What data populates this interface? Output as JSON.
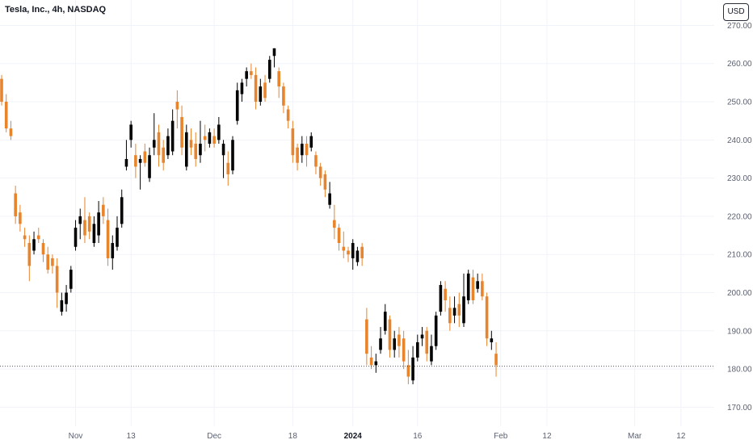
{
  "header": {
    "title": "Tesla, Inc., 4h, NASDAQ",
    "currency_button": "USD"
  },
  "colors": {
    "up": "#000000",
    "down": "#e8842c",
    "grid": "#f0f3fa",
    "price_line": "#131722"
  },
  "chart_data": {
    "type": "candlestick",
    "title": "Tesla, Inc., 4h, NASDAQ",
    "ylim": [
      165,
      272
    ],
    "y_ticks": [
      170,
      180,
      190,
      200,
      210,
      220,
      230,
      240,
      250,
      260,
      270
    ],
    "y_tick_labels": [
      "170.00",
      "180.00",
      "190.00",
      "200.00",
      "210.00",
      "220.00",
      "230.00",
      "240.00",
      "250.00",
      "260.00",
      "270.00"
    ],
    "x_ticks": [
      {
        "label": "Nov",
        "at": 16,
        "bold": false
      },
      {
        "label": "13",
        "at": 28,
        "bold": false
      },
      {
        "label": "Dec",
        "at": 46,
        "bold": false
      },
      {
        "label": "18",
        "at": 63,
        "bold": false
      },
      {
        "label": "2024",
        "at": 76,
        "bold": true
      },
      {
        "label": "16",
        "at": 90,
        "bold": false
      },
      {
        "label": "Feb",
        "at": 108,
        "bold": false
      },
      {
        "label": "12",
        "at": 118,
        "bold": false
      },
      {
        "label": "Mar",
        "at": 137,
        "bold": false
      },
      {
        "label": "12",
        "at": 147,
        "bold": false
      }
    ],
    "last_price": 180.7,
    "candles": [
      [
        256,
        250,
        257,
        249
      ],
      [
        250,
        243,
        252,
        242
      ],
      [
        243,
        241,
        245,
        240
      ],
      [
        226,
        220,
        228,
        218
      ],
      [
        221,
        218,
        223,
        216
      ],
      [
        215,
        214,
        217,
        212
      ],
      [
        213,
        207,
        215,
        203
      ],
      [
        211,
        214,
        216,
        210
      ],
      [
        215,
        214,
        217,
        213
      ],
      [
        213,
        210,
        214,
        208
      ],
      [
        210,
        206,
        212,
        205
      ],
      [
        209,
        207,
        210,
        205
      ],
      [
        207,
        200,
        209,
        196
      ],
      [
        195,
        198,
        200,
        194
      ],
      [
        197,
        200,
        202,
        195
      ],
      [
        201,
        206,
        207,
        200
      ],
      [
        212,
        217,
        219,
        211
      ],
      [
        218,
        220,
        222,
        214
      ],
      [
        219,
        215,
        225,
        213
      ],
      [
        220,
        216,
        221,
        214
      ],
      [
        213,
        218,
        220,
        212
      ],
      [
        215,
        221,
        224,
        213
      ],
      [
        223,
        220,
        225,
        218
      ],
      [
        219,
        209,
        222,
        207
      ],
      [
        209,
        213,
        215,
        206
      ],
      [
        212,
        217,
        220,
        211
      ],
      [
        218,
        225,
        227,
        217
      ],
      [
        233,
        235,
        240,
        232
      ],
      [
        240,
        244,
        245,
        238
      ],
      [
        236,
        233,
        239,
        230
      ],
      [
        234,
        235,
        236,
        227
      ],
      [
        237,
        234,
        239,
        233
      ],
      [
        230,
        236,
        238,
        229
      ],
      [
        238,
        240,
        247,
        236
      ],
      [
        242,
        236,
        244,
        233
      ],
      [
        238,
        234,
        240,
        232
      ],
      [
        236,
        241,
        243,
        235
      ],
      [
        237,
        245,
        248,
        236
      ],
      [
        250,
        248,
        253,
        243
      ],
      [
        246,
        238,
        249,
        236
      ],
      [
        233,
        242,
        244,
        232
      ],
      [
        240,
        238,
        243,
        236
      ],
      [
        239,
        235,
        242,
        233
      ],
      [
        236,
        239,
        245,
        234
      ],
      [
        241,
        240,
        244,
        237
      ],
      [
        239,
        242,
        243,
        238
      ],
      [
        241,
        239,
        243,
        238
      ],
      [
        240,
        244,
        246,
        239
      ],
      [
        236,
        239,
        240,
        230
      ],
      [
        234,
        231,
        237,
        228
      ],
      [
        232,
        240,
        241,
        231
      ],
      [
        245,
        253,
        255,
        244
      ],
      [
        252,
        255,
        256,
        250
      ],
      [
        256,
        258,
        259,
        254
      ],
      [
        258,
        257,
        260,
        256
      ],
      [
        257,
        250,
        259,
        248
      ],
      [
        250,
        254,
        256,
        249
      ],
      [
        255,
        251,
        257,
        250
      ],
      [
        256,
        261,
        262,
        255
      ],
      [
        262,
        264,
        264,
        259
      ],
      [
        258,
        254,
        259,
        251
      ],
      [
        254,
        249,
        255,
        247
      ],
      [
        248,
        245,
        249,
        243
      ],
      [
        243,
        236,
        245,
        234
      ],
      [
        238,
        234,
        239,
        232
      ],
      [
        236,
        239,
        241,
        234
      ],
      [
        239,
        236,
        241,
        233
      ],
      [
        238,
        241,
        242,
        237
      ],
      [
        236,
        233,
        237,
        231
      ],
      [
        233,
        230,
        234,
        228
      ],
      [
        231,
        227,
        232,
        225
      ],
      [
        223,
        226,
        229,
        222
      ],
      [
        219,
        217,
        223,
        214
      ],
      [
        217,
        213,
        218,
        211
      ],
      [
        212,
        211,
        216,
        209
      ],
      [
        211,
        210,
        212,
        208
      ],
      [
        209,
        213,
        214,
        206
      ],
      [
        208,
        211,
        212,
        207
      ],
      [
        212,
        209,
        213,
        207
      ],
      [
        193,
        184,
        196,
        181
      ],
      [
        183,
        181,
        186,
        180
      ],
      [
        181,
        182,
        184,
        179
      ],
      [
        185,
        188,
        191,
        184
      ],
      [
        190,
        195,
        197,
        189
      ],
      [
        193,
        185,
        194,
        183
      ],
      [
        185,
        188,
        190,
        183
      ],
      [
        189,
        186,
        191,
        183
      ],
      [
        188,
        182,
        190,
        180
      ],
      [
        181,
        178,
        185,
        176
      ],
      [
        177,
        183,
        186,
        176
      ],
      [
        183,
        187,
        189,
        182
      ],
      [
        188,
        189,
        191,
        186
      ],
      [
        190,
        184,
        191,
        182
      ],
      [
        182,
        186,
        189,
        181
      ],
      [
        186,
        194,
        195,
        185
      ],
      [
        195,
        202,
        203,
        194
      ],
      [
        201,
        198,
        203,
        195
      ],
      [
        196,
        192,
        199,
        190
      ],
      [
        194,
        196,
        199,
        192
      ],
      [
        197,
        194,
        200,
        191
      ],
      [
        192,
        199,
        205,
        191
      ],
      [
        198,
        205,
        206,
        197
      ],
      [
        204,
        198,
        206,
        197
      ],
      [
        201,
        203,
        205,
        200
      ],
      [
        203,
        199,
        205,
        198
      ],
      [
        199,
        188,
        200,
        186
      ],
      [
        187,
        188,
        190,
        185
      ],
      [
        184,
        181,
        187,
        178
      ]
    ]
  }
}
